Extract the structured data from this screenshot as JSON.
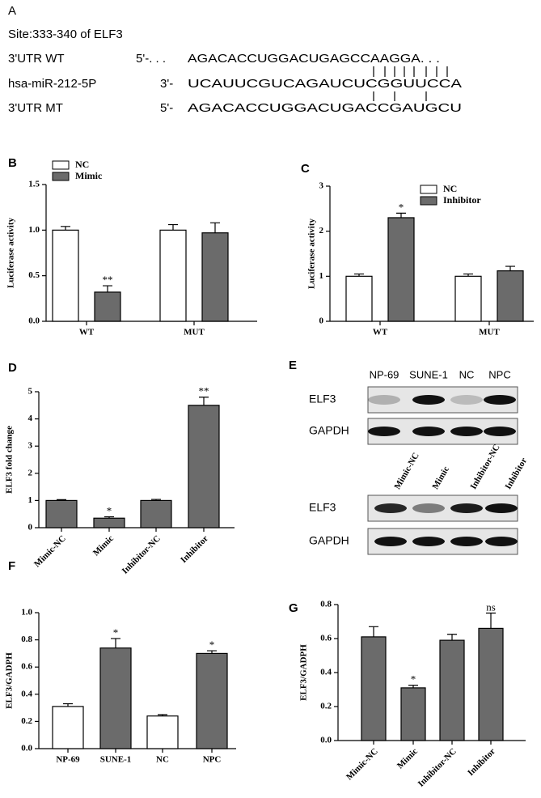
{
  "panel_a": {
    "panel": "A",
    "site": "Site:333-340 of ELF3",
    "rows": [
      {
        "label": "3'UTR WT",
        "prime": "5'-. . .",
        "sequence": "AGACACCUGGACUGAGCCAAGGA. . ."
      },
      {
        "label": "hsa-miR-212-5P",
        "prime": "3'-",
        "sequence": "UCAUUCGUCAGAUCUCGGUUCCA"
      },
      {
        "label": "3'UTR MT",
        "prime": "5'-",
        "sequence": "AGACACCUGGACUGACCGAUGCU"
      }
    ]
  },
  "chart_data": [
    {
      "type": "bar",
      "panel": "B",
      "y_label": "Luciferase activity",
      "categories": [
        "WT",
        "MUT"
      ],
      "ylim": [
        0,
        1.5
      ],
      "yticks": [
        {
          "value": 0,
          "label": "0.0"
        },
        0.5,
        {
          "value": 1,
          "label": "1.0"
        },
        1.5
      ],
      "legend": "upper left",
      "series": [
        {
          "name": "NC",
          "color": "#ffffff",
          "values": [
            1.0,
            1.0
          ],
          "errors": [
            0.04,
            0.06
          ],
          "annotations": [
            null,
            null
          ]
        },
        {
          "name": "Mimic",
          "color": "#6b6b6b",
          "values": [
            0.32,
            0.97
          ],
          "errors": [
            0.07,
            0.11
          ],
          "annotations": [
            "**",
            null
          ]
        }
      ]
    },
    {
      "type": "bar",
      "panel": "C",
      "y_label": "Luciferase activity",
      "categories": [
        "WT",
        "MUT"
      ],
      "ylim": [
        0,
        3
      ],
      "yticks": [
        0,
        1,
        2,
        3
      ],
      "legend": "upper right",
      "series": [
        {
          "name": "NC",
          "color": "#ffffff",
          "values": [
            1.0,
            1.0
          ],
          "errors": [
            0.05,
            0.05
          ],
          "annotations": [
            null,
            null
          ]
        },
        {
          "name": "Inhibitor",
          "color": "#6b6b6b",
          "values": [
            2.3,
            1.12
          ],
          "errors": [
            0.1,
            0.1
          ],
          "annotations": [
            "*",
            null
          ]
        }
      ]
    },
    {
      "type": "bar",
      "panel": "D",
      "y_label": "ELF3 fold change",
      "categories": [
        "Mimic-NC",
        "Mimic",
        "Inhibitor-NC",
        "Inhibitor"
      ],
      "ylim": [
        0,
        5
      ],
      "yticks": [
        0,
        1,
        2,
        3,
        4,
        5
      ],
      "series": [
        {
          "color": "#6b6b6b",
          "values": [
            1.0,
            0.35,
            1.0,
            4.5
          ],
          "errors": [
            0.03,
            0.05,
            0.04,
            0.3
          ],
          "annotations": [
            null,
            "*",
            null,
            "**"
          ]
        }
      ]
    },
    {
      "type": "bar",
      "panel": "F",
      "y_label": "ELF3/GADPH",
      "categories": [
        "NP-69",
        "SUNE-1",
        "NC",
        "NPC"
      ],
      "ylim": [
        0,
        1.0
      ],
      "yticks": [
        {
          "value": 0,
          "label": "0.0"
        },
        0.2,
        0.4,
        0.6,
        0.8,
        {
          "value": 1,
          "label": "1.0"
        }
      ],
      "series": [
        {
          "colors": [
            "#ffffff",
            "#6b6b6b",
            "#ffffff",
            "#6b6b6b"
          ],
          "values": [
            0.31,
            0.74,
            0.24,
            0.7
          ],
          "errors": [
            0.02,
            0.07,
            0.01,
            0.02
          ],
          "annotations": [
            null,
            "*",
            null,
            "*"
          ]
        }
      ]
    },
    {
      "type": "bar",
      "panel": "G",
      "y_label": "ELF3/GADPH",
      "categories": [
        "Mimic-NC",
        "Mimic",
        "Inhibitor-NC",
        "Inhibitor"
      ],
      "ylim": [
        0,
        0.8
      ],
      "yticks": [
        {
          "value": 0,
          "label": "0.0"
        },
        0.2,
        0.4,
        0.6,
        0.8
      ],
      "series": [
        {
          "color": "#6b6b6b",
          "values": [
            0.61,
            0.31,
            0.59,
            0.66
          ],
          "errors": [
            0.06,
            0.015,
            0.035,
            0.09
          ],
          "annotations": [
            null,
            "*",
            null,
            "ns"
          ]
        }
      ]
    }
  ],
  "panel_e": {
    "panel": "E",
    "blots": [
      {
        "lanes": [
          "NP-69",
          "SUNE-1",
          "NC",
          "NPC"
        ],
        "rows": [
          "ELF3",
          "GAPDH"
        ]
      },
      {
        "lanes": [
          "Mimic-NC",
          "Mimic",
          "Inhibitor-NC",
          "Inhibitor"
        ],
        "rows": [
          "ELF3",
          "GAPDH"
        ]
      }
    ]
  }
}
